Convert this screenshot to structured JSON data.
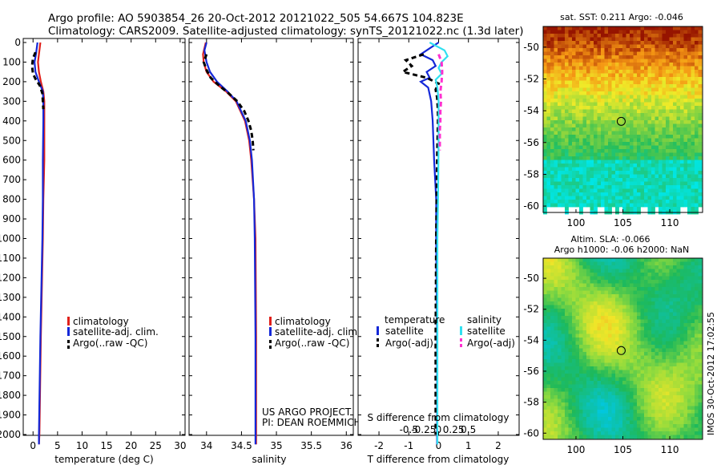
{
  "header": {
    "line1": "Argo profile: AO 5903854_26 20-Oct-2012 20121022_505 54.667S 104.823E",
    "line2": "Climatology: CARS2009. Satellite-adjusted climatology: synTS_20121022.nc (1.3d later)"
  },
  "colors": {
    "climatology": "#e0201a",
    "satellite": "#1428d8",
    "argo": "#000000",
    "sal_satellite": "#30e0f0",
    "sal_argo": "#ff30d0"
  },
  "chart_data": [
    {
      "type": "line",
      "title": "",
      "xlabel": "temperature (deg C)",
      "ylabel": "",
      "xlim": [
        -2,
        31
      ],
      "ylim": [
        2060,
        0
      ],
      "xticks": [
        0,
        5,
        10,
        15,
        20,
        25,
        30
      ],
      "yticks": [
        0,
        100,
        200,
        300,
        400,
        500,
        600,
        700,
        800,
        900,
        1000,
        1100,
        1200,
        1300,
        1400,
        1500,
        1600,
        1700,
        1800,
        1900,
        2000
      ],
      "legend": [
        "climatology",
        "satellite-adj. clim.",
        "Argo(..raw -QC)"
      ],
      "series": [
        {
          "name": "climatology",
          "depth": [
            0,
            60,
            100,
            150,
            200,
            250,
            300,
            400,
            600,
            800,
            1000,
            1500,
            2000,
            2050
          ],
          "values": [
            1.5,
            1.2,
            1.0,
            1.2,
            1.6,
            2.1,
            2.3,
            2.3,
            2.3,
            2.1,
            2.0,
            1.6,
            1.3,
            1.2
          ]
        },
        {
          "name": "satellite-adj. clim.",
          "depth": [
            0,
            60,
            100,
            150,
            200,
            250,
            300,
            400,
            600,
            800,
            1000,
            1500,
            2000,
            2050
          ],
          "values": [
            0.9,
            0.6,
            0.3,
            0.5,
            1.2,
            2.0,
            2.1,
            2.1,
            2.0,
            2.0,
            1.9,
            1.5,
            1.2,
            1.2
          ]
        },
        {
          "name": "Argo(..raw -QC)",
          "depth": [
            50,
            80,
            120,
            160,
            190,
            220,
            260,
            300,
            340
          ],
          "values": [
            0.5,
            0.0,
            -0.2,
            0.0,
            0.6,
            1.4,
            1.9,
            2.0,
            2.1
          ]
        }
      ]
    },
    {
      "type": "line",
      "title": "",
      "xlabel": "salinity",
      "ylabel": "",
      "xlim": [
        33.75,
        36.1
      ],
      "ylim": [
        2060,
        0
      ],
      "xticks": [
        34,
        34.5,
        35,
        35.5,
        36
      ],
      "legend": [
        "climatology",
        "satellite-adj. clim.",
        "Argo(..raw -QC)"
      ],
      "annotation": [
        "US ARGO PROJECT",
        "PI: DEAN ROEMMICH"
      ],
      "series": [
        {
          "name": "climatology",
          "depth": [
            0,
            60,
            100,
            150,
            200,
            250,
            300,
            400,
            500,
            600,
            800,
            1000,
            1500,
            2000,
            2050
          ],
          "values": [
            33.99,
            33.95,
            33.96,
            34.0,
            34.1,
            34.28,
            34.42,
            34.55,
            34.61,
            34.64,
            34.68,
            34.7,
            34.71,
            34.71,
            34.71
          ]
        },
        {
          "name": "satellite-adj. clim.",
          "depth": [
            0,
            40,
            100,
            150,
            200,
            250,
            300,
            400,
            500,
            600,
            800,
            1000,
            1500,
            2000,
            2050
          ],
          "values": [
            34.0,
            33.97,
            34.0,
            34.05,
            34.15,
            34.3,
            34.43,
            34.56,
            34.62,
            34.65,
            34.68,
            34.69,
            34.7,
            34.7,
            34.7
          ]
        },
        {
          "name": "Argo(..raw -QC)",
          "depth": [
            60,
            100,
            140,
            180,
            220,
            260,
            300,
            350,
            400,
            450,
            500,
            550
          ],
          "values": [
            34.0,
            33.96,
            34.0,
            34.06,
            34.18,
            34.32,
            34.44,
            34.54,
            34.6,
            34.64,
            34.66,
            34.67
          ]
        }
      ]
    },
    {
      "type": "line",
      "title": "",
      "xlabel": "T difference from climatology",
      "ylabel": "",
      "xlim": [
        -2.7,
        2.7
      ],
      "ylim": [
        2060,
        0
      ],
      "xticks": [
        -2,
        -1,
        0,
        1,
        2
      ],
      "xtick_labels": [
        "-2",
        "-1",
        "0",
        "1",
        "2"
      ],
      "s_axis_label": "S difference from climatology",
      "s_ticks": [
        -0.5,
        -0.25,
        0,
        0.25,
        0.5
      ],
      "s_tick_labels": [
        "-0.5",
        "-0.25",
        "0",
        "0.25",
        "0.5"
      ],
      "legend_headers": [
        "temperature",
        "salinity"
      ],
      "legend": [
        "satellite",
        "Argo(-adj)",
        "satellite",
        "Argo(-adj)"
      ],
      "series": [
        {
          "name": "T satellite",
          "depth": [
            0,
            30,
            60,
            90,
            120,
            150,
            180,
            200,
            230,
            300,
            400,
            600,
            800,
            1000,
            1500,
            2000,
            2050
          ],
          "values": [
            0.0,
            -0.3,
            -0.6,
            -0.2,
            -0.1,
            -0.4,
            -0.3,
            -0.6,
            -0.35,
            -0.25,
            -0.2,
            -0.15,
            -0.08,
            -0.08,
            -0.05,
            -0.05,
            -0.05
          ]
        },
        {
          "name": "T Argo(-adj)",
          "depth": [
            60,
            90,
            120,
            150,
            180,
            210,
            240,
            280,
            330,
            380,
            600,
            1000,
            1500,
            2000
          ],
          "values": [
            -0.5,
            -1.1,
            -0.9,
            -1.2,
            -0.4,
            0.0,
            -0.1,
            -0.05,
            -0.03,
            -0.02,
            -0.05,
            -0.08,
            -0.1,
            -0.1
          ]
        },
        {
          "name": "S satellite",
          "depth": [
            0,
            40,
            70,
            100,
            130,
            160,
            190,
            230,
            300,
            500,
            800,
            1000,
            1500,
            2000,
            2050
          ],
          "values": [
            -0.15,
            0.1,
            0.15,
            0.05,
            0.0,
            0.05,
            -0.05,
            -0.02,
            0.0,
            0.0,
            -0.01,
            -0.02,
            -0.02,
            -0.02,
            -0.02
          ]
        },
        {
          "name": "S Argo(-adj)",
          "depth": [
            60,
            100,
            150,
            200,
            250,
            300,
            350,
            400,
            450,
            500,
            550
          ],
          "values": [
            0.0,
            0.05,
            0.06,
            0.05,
            0.03,
            0.04,
            0.03,
            0.03,
            0.02,
            0.02,
            0.02
          ]
        }
      ]
    },
    {
      "type": "heatmap",
      "title": "sat. SST: 0.211 Argo: -0.046",
      "xticks": [
        100,
        105,
        110
      ],
      "yticks": [
        -50,
        -52,
        -54,
        -56,
        -58,
        -60
      ],
      "xlim": [
        96.5,
        113.5
      ],
      "ylim": [
        -60.4,
        -48.7
      ],
      "marker": {
        "lon": 104.823,
        "lat": -54.667
      }
    },
    {
      "type": "heatmap",
      "title_lines": [
        "Altim. SLA: -0.066",
        "Argo h1000: -0.06 h2000: NaN"
      ],
      "xticks": [
        100,
        105,
        110
      ],
      "yticks": [
        -50,
        -52,
        -54,
        -56,
        -58,
        -60
      ],
      "xlim": [
        96.5,
        113.5
      ],
      "ylim": [
        -60.4,
        -48.7
      ],
      "marker": {
        "lon": 104.823,
        "lat": -54.667
      }
    }
  ],
  "watermark": "IMOS 30-Oct-2012 17:02:55"
}
